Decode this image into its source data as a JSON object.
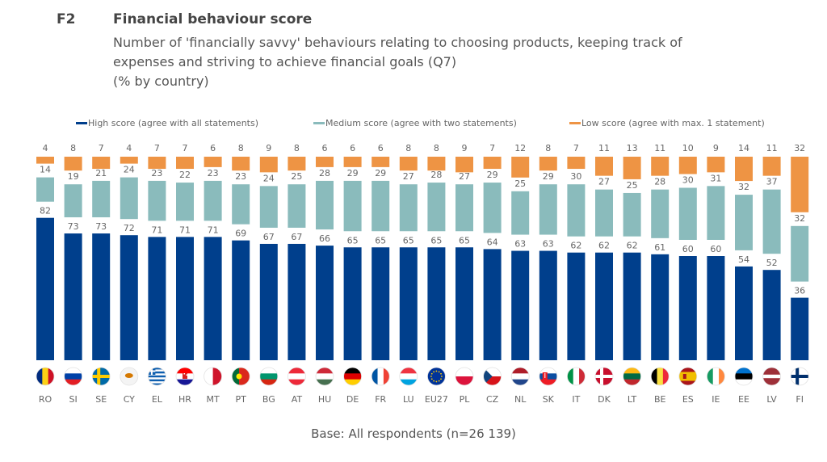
{
  "figure": {
    "id": "F2",
    "title": "Financial behaviour score",
    "subtitle_line1": "Number of 'financially savvy' behaviours relating to choosing products, keeping track of",
    "subtitle_line2": "expenses and striving to achieve financial goals (Q7)",
    "subtitle_line3": "(% by country)",
    "footer": "Base: All respondents (n=26 139)"
  },
  "colors": {
    "high": "#003F8C",
    "medium": "#8ABBBC",
    "low": "#EE9444"
  },
  "chart_data": {
    "type": "bar",
    "stacked": true,
    "title": "Financial behaviour score",
    "xlabel": "",
    "ylabel": "%",
    "ylim": [
      0,
      100
    ],
    "grid": false,
    "legend_position": "top",
    "categories": [
      "RO",
      "SI",
      "SE",
      "CY",
      "EL",
      "HR",
      "MT",
      "PT",
      "BG",
      "AT",
      "HU",
      "DE",
      "FR",
      "LU",
      "EU27",
      "PL",
      "CZ",
      "NL",
      "SK",
      "IT",
      "DK",
      "LT",
      "BE",
      "ES",
      "IE",
      "EE",
      "LV",
      "FI"
    ],
    "flags": [
      "flag-romania",
      "flag-slovenia",
      "flag-sweden",
      "flag-cyprus",
      "flag-greece",
      "flag-croatia",
      "flag-malta",
      "flag-portugal",
      "flag-bulgaria",
      "flag-austria",
      "flag-hungary",
      "flag-germany",
      "flag-france",
      "flag-luxembourg",
      "flag-eu",
      "flag-poland",
      "flag-czechia",
      "flag-netherlands",
      "flag-slovakia",
      "flag-italy",
      "flag-denmark",
      "flag-lithuania",
      "flag-belgium",
      "flag-spain",
      "flag-ireland",
      "flag-estonia",
      "flag-latvia",
      "flag-finland"
    ],
    "series": [
      {
        "name": "High score (agree with all statements)",
        "key": "high",
        "values": [
          82,
          73,
          73,
          72,
          71,
          71,
          71,
          69,
          67,
          67,
          66,
          65,
          65,
          65,
          65,
          65,
          64,
          63,
          63,
          62,
          62,
          62,
          61,
          60,
          60,
          54,
          52,
          36
        ]
      },
      {
        "name": "Medium score (agree with two statements)",
        "key": "medium",
        "values": [
          14,
          19,
          21,
          24,
          23,
          22,
          23,
          23,
          24,
          25,
          28,
          29,
          29,
          27,
          28,
          27,
          29,
          25,
          29,
          30,
          27,
          25,
          28,
          30,
          31,
          32,
          37,
          32
        ]
      },
      {
        "name": "Low score (agree with max. 1 statement)",
        "key": "low",
        "values": [
          4,
          8,
          7,
          4,
          7,
          7,
          6,
          8,
          9,
          8,
          6,
          6,
          6,
          8,
          8,
          9,
          7,
          12,
          8,
          7,
          11,
          13,
          11,
          10,
          9,
          14,
          11,
          32
        ]
      }
    ]
  }
}
